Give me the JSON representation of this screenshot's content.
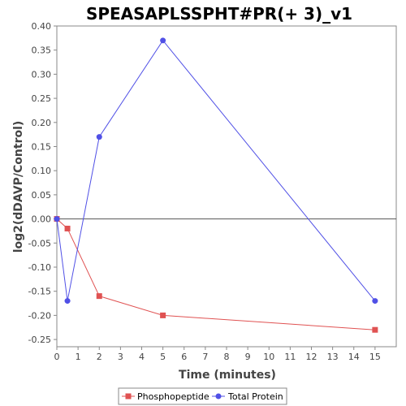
{
  "chart_data": {
    "type": "line",
    "title": "SPEASAPLSSPHT#PR(+ 3)_v1",
    "xlabel": "Time (minutes)",
    "ylabel": "log2(dDAVP/Control)",
    "xlim": [
      0,
      16
    ],
    "ylim": [
      -0.265,
      0.4
    ],
    "x_ticks": [
      "0",
      "1",
      "2",
      "3",
      "4",
      "5",
      "6",
      "7",
      "8",
      "9",
      "10",
      "11",
      "12",
      "13",
      "14",
      "15"
    ],
    "y_ticks": [
      "0.40",
      "0.35",
      "0.30",
      "0.25",
      "0.20",
      "0.15",
      "0.10",
      "0.05",
      "0.00",
      "-0.05",
      "-0.10",
      "-0.15",
      "-0.20",
      "-0.25"
    ],
    "y_tick_values": [
      0.4,
      0.35,
      0.3,
      0.25,
      0.2,
      0.15,
      0.1,
      0.05,
      0.0,
      -0.05,
      -0.1,
      -0.15,
      -0.2,
      -0.25
    ],
    "grid": false,
    "zero_line": true,
    "legend_position": "bottom",
    "series": [
      {
        "name": "Phosphopeptide",
        "marker": "square",
        "color": "#e05252",
        "x": [
          0,
          0.5,
          2,
          5,
          15
        ],
        "y": [
          0.0,
          -0.02,
          -0.16,
          -0.2,
          -0.23
        ]
      },
      {
        "name": "Total Protein",
        "marker": "circle",
        "color": "#5050e6",
        "x": [
          0,
          0.5,
          2,
          5,
          15
        ],
        "y": [
          0.0,
          -0.17,
          0.17,
          0.37,
          -0.17
        ]
      }
    ]
  }
}
